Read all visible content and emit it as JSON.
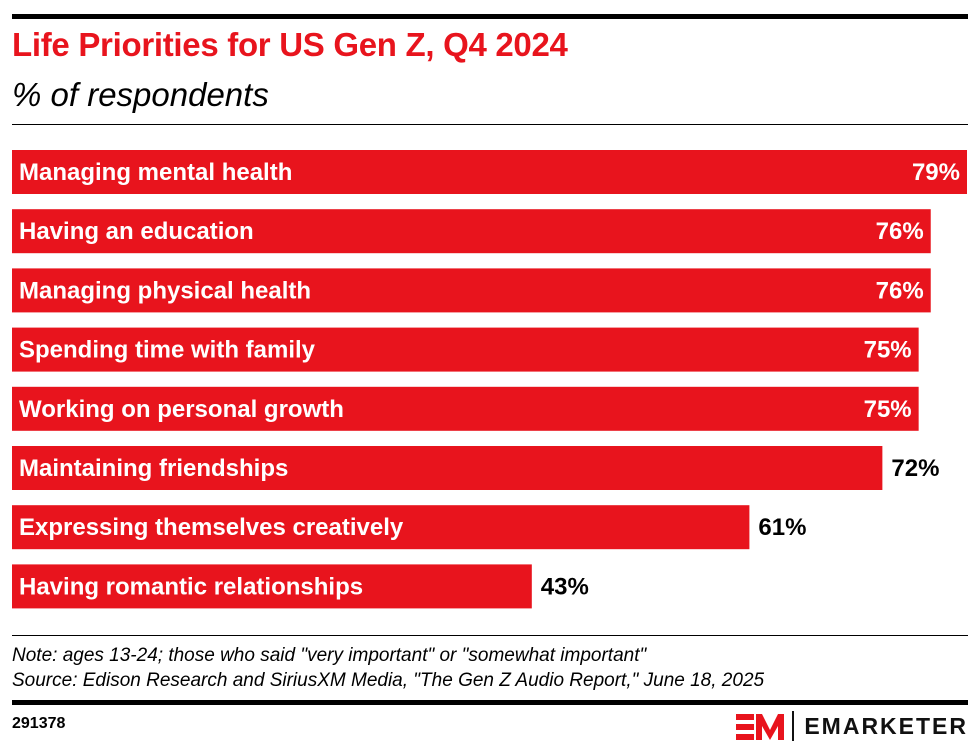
{
  "title": "Life Priorities for US Gen Z, Q4 2024",
  "subtitle": "% of respondents",
  "chart_data": {
    "type": "bar",
    "orientation": "horizontal",
    "categories": [
      "Managing mental health",
      "Having an education",
      "Managing physical health",
      "Spending time with family",
      "Working on personal growth",
      "Maintaining friendships",
      "Expressing themselves creatively",
      "Having romantic relationships"
    ],
    "values": [
      79,
      76,
      76,
      75,
      75,
      72,
      61,
      43
    ],
    "value_labels": [
      "79%",
      "76%",
      "76%",
      "75%",
      "75%",
      "72%",
      "61%",
      "43%"
    ],
    "xlim": [
      0,
      79
    ],
    "grid": false,
    "bar_color": "#e8141d"
  },
  "note": "Note: ages 13-24; those who said \"very important\" or \"somewhat important\"",
  "source": "Source: Edison Research and SiriusXM Media, \"The Gen Z Audio Report,\" June 18, 2025",
  "chart_id": "291378",
  "brand": {
    "name": "EMARKETER",
    "mark": "EM",
    "color": "#e8141d"
  }
}
